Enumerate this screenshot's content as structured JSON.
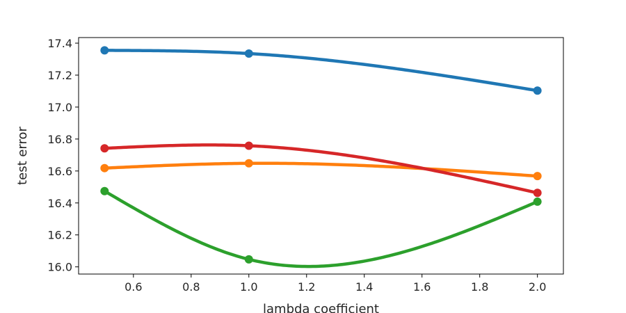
{
  "chart_data": {
    "type": "line",
    "title": "",
    "xlabel": "lambda coefficient",
    "ylabel": "test error",
    "xlim": [
      0.41,
      2.09
    ],
    "ylim": [
      15.955,
      17.435
    ],
    "xticks": [
      0.6,
      0.8,
      1.0,
      1.2,
      1.4,
      1.6,
      1.8,
      2.0
    ],
    "xtick_labels": [
      "0.6",
      "0.8",
      "1.0",
      "1.2",
      "1.4",
      "1.6",
      "1.8",
      "2.0"
    ],
    "yticks": [
      16.0,
      16.2,
      16.4,
      16.6,
      16.8,
      17.0,
      17.2,
      17.4
    ],
    "ytick_labels": [
      "16.0",
      "16.2",
      "16.4",
      "16.6",
      "16.8",
      "17.0",
      "17.2",
      "17.4"
    ],
    "grid": false,
    "legend": "none",
    "x": [
      0.5,
      1.0,
      2.0
    ],
    "series": [
      {
        "color": "#1f77b4",
        "values": [
          17.355,
          17.335,
          17.103
        ]
      },
      {
        "color": "#ff7f0e",
        "values": [
          16.618,
          16.648,
          16.568
        ]
      },
      {
        "color": "#2ca02c",
        "values": [
          16.474,
          16.047,
          16.408
        ]
      },
      {
        "color": "#d62728",
        "values": [
          16.742,
          16.758,
          16.463
        ]
      }
    ]
  }
}
